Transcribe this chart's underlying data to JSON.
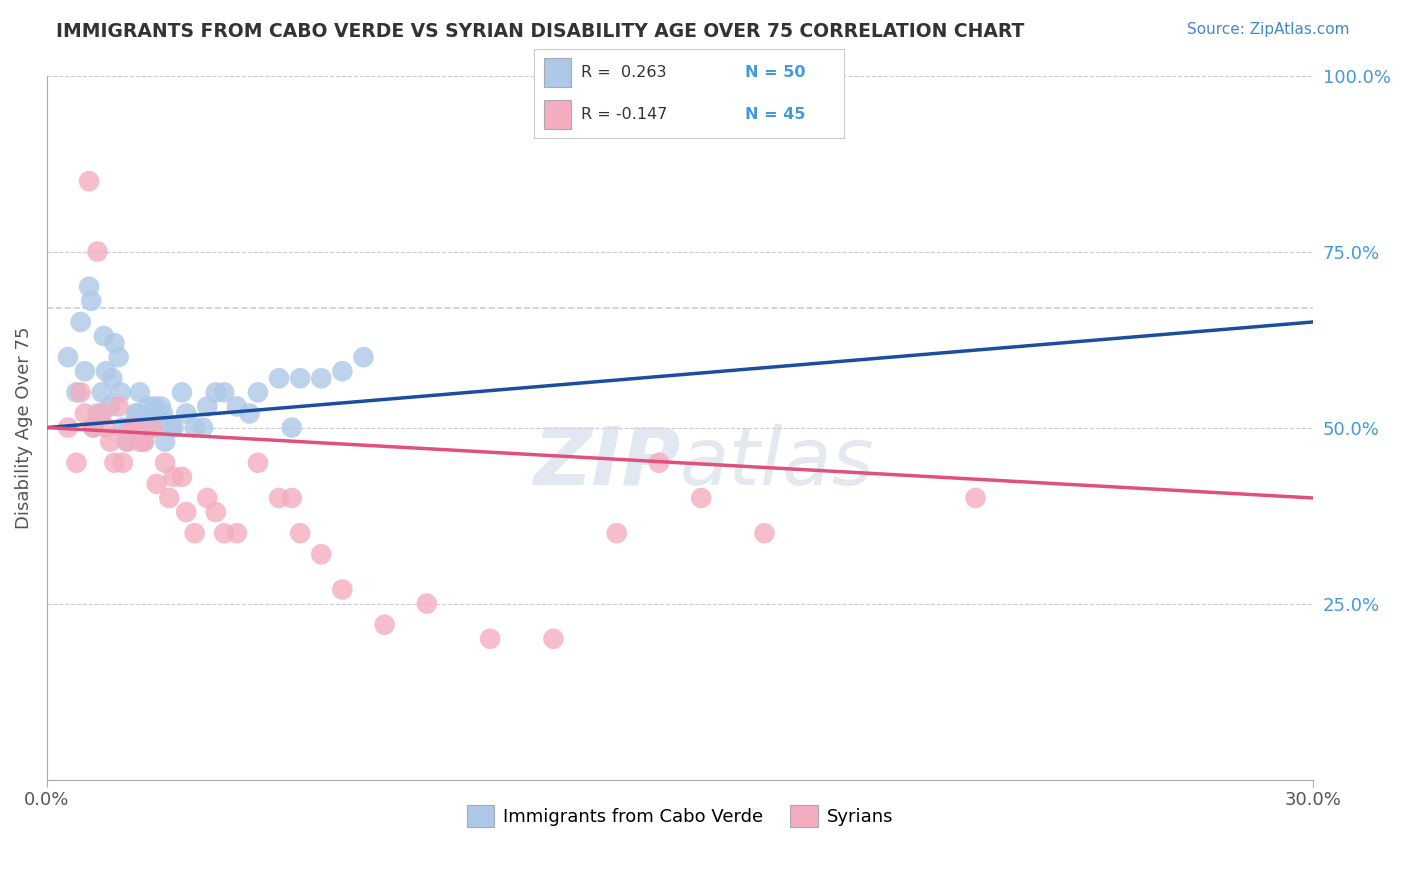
{
  "title": "IMMIGRANTS FROM CABO VERDE VS SYRIAN DISABILITY AGE OVER 75 CORRELATION CHART",
  "source_text": "Source: ZipAtlas.com",
  "ylabel": "Disability Age Over 75",
  "xlim": [
    0.0,
    30.0
  ],
  "ylim": [
    0.0,
    100.0
  ],
  "x_tick_labels": [
    "0.0%",
    "30.0%"
  ],
  "y_ticks_right": [
    25.0,
    50.0,
    75.0,
    100.0
  ],
  "y_tick_labels_right": [
    "25.0%",
    "50.0%",
    "75.0%",
    "100.0%"
  ],
  "legend_blue_r": "R =  0.263",
  "legend_blue_n": "N = 50",
  "legend_pink_r": "R = -0.147",
  "legend_pink_n": "N = 45",
  "legend_label_blue": "Immigrants from Cabo Verde",
  "legend_label_pink": "Syrians",
  "blue_color": "#adc8e8",
  "pink_color": "#f4adc0",
  "trend_blue_color": "#1a4f9e",
  "trend_pink_color": "#e0507a",
  "trend_dashed_color": "#aabbcc",
  "grid_color": "#cccccc",
  "background_color": "#ffffff",
  "title_color": "#333333",
  "source_color": "#4488cc",
  "right_tick_color": "#4499dd",
  "blue_scatter_x": [
    0.5,
    0.7,
    0.8,
    1.0,
    1.1,
    1.2,
    1.3,
    1.4,
    1.5,
    1.6,
    1.7,
    1.8,
    1.9,
    2.0,
    2.1,
    2.2,
    2.3,
    2.4,
    2.5,
    2.6,
    2.7,
    2.8,
    3.0,
    3.2,
    3.5,
    3.8,
    4.0,
    4.5,
    5.0,
    5.5,
    6.0,
    6.5,
    7.0,
    0.9,
    1.05,
    1.35,
    1.55,
    1.75,
    1.95,
    2.15,
    2.35,
    2.55,
    2.75,
    2.95,
    3.3,
    3.7,
    4.2,
    4.8,
    5.8,
    7.5
  ],
  "blue_scatter_y": [
    60,
    55,
    65,
    70,
    50,
    52,
    55,
    58,
    53,
    62,
    60,
    50,
    48,
    50,
    52,
    55,
    48,
    53,
    50,
    52,
    53,
    48,
    50,
    55,
    50,
    53,
    55,
    53,
    55,
    57,
    57,
    57,
    58,
    58,
    68,
    63,
    57,
    55,
    50,
    52,
    50,
    53,
    52,
    50,
    52,
    50,
    55,
    52,
    50,
    60
  ],
  "pink_scatter_x": [
    0.5,
    0.7,
    0.9,
    1.0,
    1.1,
    1.2,
    1.3,
    1.5,
    1.6,
    1.7,
    1.9,
    2.0,
    2.1,
    2.2,
    2.5,
    2.8,
    3.0,
    3.2,
    3.5,
    3.8,
    4.0,
    4.5,
    5.0,
    5.5,
    6.0,
    0.8,
    1.4,
    1.8,
    2.3,
    2.6,
    2.9,
    3.3,
    4.2,
    5.8,
    6.5,
    7.0,
    8.0,
    9.0,
    10.5,
    12.0,
    13.5,
    14.5,
    15.5,
    17.0,
    22.0
  ],
  "pink_scatter_y": [
    50,
    45,
    52,
    85,
    50,
    75,
    52,
    48,
    45,
    53,
    48,
    50,
    50,
    48,
    50,
    45,
    43,
    43,
    35,
    40,
    38,
    35,
    45,
    40,
    35,
    55,
    50,
    45,
    48,
    42,
    40,
    38,
    35,
    40,
    32,
    27,
    22,
    25,
    20,
    20,
    35,
    45,
    40,
    35,
    40
  ]
}
